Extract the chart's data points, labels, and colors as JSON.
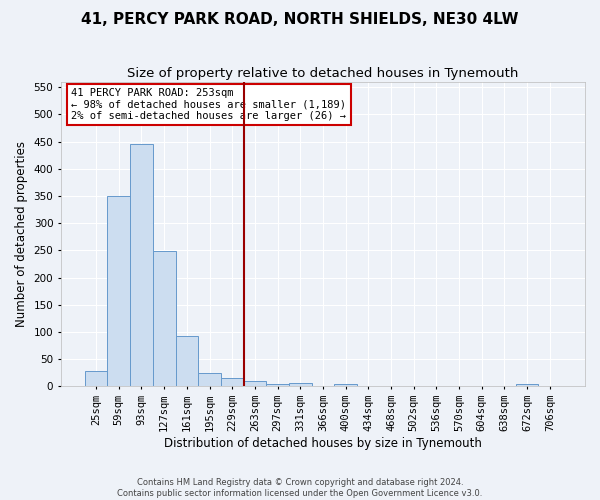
{
  "title": "41, PERCY PARK ROAD, NORTH SHIELDS, NE30 4LW",
  "subtitle": "Size of property relative to detached houses in Tynemouth",
  "xlabel": "Distribution of detached houses by size in Tynemouth",
  "ylabel": "Number of detached properties",
  "bar_labels": [
    "25sqm",
    "59sqm",
    "93sqm",
    "127sqm",
    "161sqm",
    "195sqm",
    "229sqm",
    "263sqm",
    "297sqm",
    "331sqm",
    "366sqm",
    "400sqm",
    "434sqm",
    "468sqm",
    "502sqm",
    "536sqm",
    "570sqm",
    "604sqm",
    "638sqm",
    "672sqm",
    "706sqm"
  ],
  "bar_values": [
    28,
    350,
    445,
    248,
    93,
    24,
    15,
    10,
    5,
    6,
    0,
    5,
    0,
    0,
    0,
    0,
    0,
    0,
    0,
    5,
    0
  ],
  "bar_color": "#ccddf0",
  "bar_edge_color": "#6699cc",
  "vline_color": "#990000",
  "vline_x_index": 7,
  "annotation_text": "41 PERCY PARK ROAD: 253sqm\n← 98% of detached houses are smaller (1,189)\n2% of semi-detached houses are larger (26) →",
  "annotation_box_facecolor": "#ffffff",
  "annotation_box_edgecolor": "#cc0000",
  "ylim": [
    0,
    560
  ],
  "yticks": [
    0,
    50,
    100,
    150,
    200,
    250,
    300,
    350,
    400,
    450,
    500,
    550
  ],
  "background_color": "#eef2f8",
  "grid_color": "#ffffff",
  "title_fontsize": 11,
  "subtitle_fontsize": 9.5,
  "axis_label_fontsize": 8.5,
  "tick_fontsize": 7.5,
  "annotation_fontsize": 7.5,
  "footer_line1": "Contains HM Land Registry data © Crown copyright and database right 2024.",
  "footer_line2": "Contains public sector information licensed under the Open Government Licence v3.0."
}
